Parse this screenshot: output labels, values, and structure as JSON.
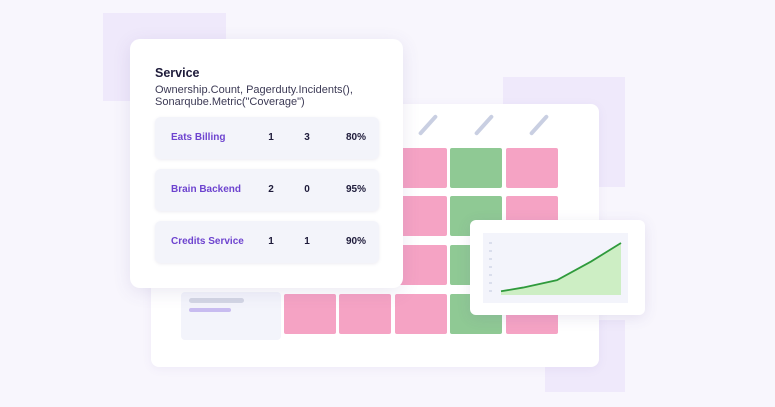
{
  "service_card": {
    "title": "Service",
    "subtitle": "Ownership.Count, Pagerduty.Incidents(), Sonarqube.Metric(\"Coverage\")",
    "rows": [
      {
        "name": "Eats Billing",
        "owners": "1",
        "incidents": "3",
        "coverage": "80%"
      },
      {
        "name": "Brain Backend",
        "owners": "2",
        "incidents": "0",
        "coverage": "95%"
      },
      {
        "name": "Credits Service",
        "owners": "1",
        "incidents": "1",
        "coverage": "90%"
      }
    ]
  },
  "colors": {
    "accent": "#6d43cf",
    "pass": "#8fc994",
    "fail": "#f5a3c4",
    "trend_line": "#2f9a3c",
    "trend_fill": "#cdeec4"
  },
  "scorecard_grid": {
    "rows": [
      [
        "fail",
        "pass",
        "fail"
      ],
      [
        "fail",
        "pass",
        "fail"
      ],
      [
        "fail",
        "pass",
        "fail"
      ],
      [
        "fail",
        "fail",
        "fail",
        "pass",
        "fail"
      ]
    ]
  },
  "trend_chart": {
    "type": "area",
    "values": [
      1,
      2,
      4,
      9,
      14
    ]
  }
}
